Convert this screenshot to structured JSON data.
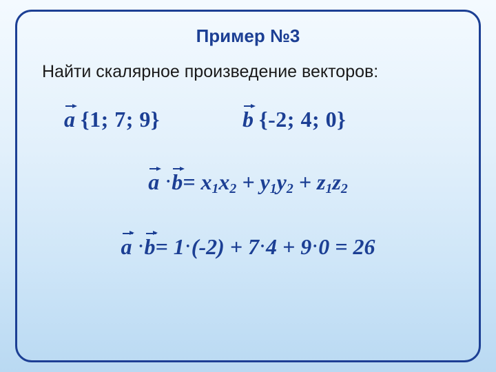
{
  "frame": {
    "border_color": "#1c3f94"
  },
  "title": {
    "text": "Пример №3",
    "color": "#1c3f94"
  },
  "task": {
    "text": "Найти скалярное произведение векторов:"
  },
  "math_color": "#1c3f94",
  "vectors": {
    "a": {
      "sym": "a",
      "coords": "{1; 7; 9}"
    },
    "b": {
      "sym": "b",
      "coords": "{-2; 4; 0}"
    }
  },
  "formula": {
    "a": "a",
    "b": "b",
    "eq": "=",
    "x1": "x",
    "s1": "1",
    "x2": "x",
    "s2": "2",
    "p1": "+",
    "y1": "y",
    "s3": "1",
    "y2": "y",
    "s4": "2",
    "p2": "+",
    "z1": "z",
    "s5": "1",
    "z2": "z",
    "s6": "2"
  },
  "compute": {
    "a": "a",
    "b": "b",
    "expr_pre": "= 1",
    "neg2": "(-2)",
    "plus1": " + 7",
    "four": "4",
    "plus2": " + 9",
    "zero": "0",
    "result": " = 26"
  }
}
